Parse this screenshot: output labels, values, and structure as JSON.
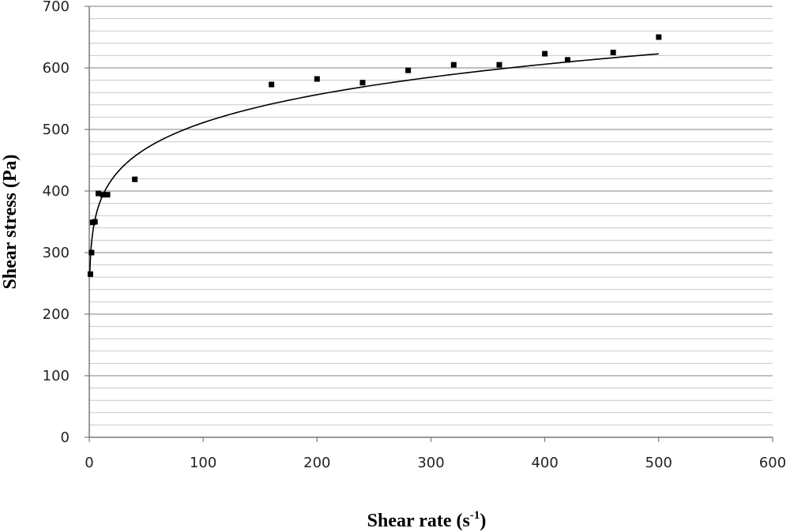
{
  "chart_data": {
    "type": "scatter",
    "xlabel": {
      "base": "Shear rate (s",
      "sup": "-1",
      "tail": ")"
    },
    "ylabel": "Shear stress (Pa)",
    "xlim": [
      0,
      600
    ],
    "ylim": [
      0,
      700
    ],
    "x_ticks": [
      "0",
      "100",
      "200",
      "300",
      "400",
      "500",
      "600"
    ],
    "y_ticks": [
      "0",
      "100",
      "200",
      "300",
      "400",
      "500",
      "600",
      "700"
    ],
    "major_grid_step": 100,
    "minor_grid_step": 20,
    "grid": true,
    "legend": "none",
    "series": [
      {
        "marker": "square",
        "points": [
          {
            "x": 1,
            "y": 265
          },
          {
            "x": 2,
            "y": 300
          },
          {
            "x": 3,
            "y": 349
          },
          {
            "x": 5,
            "y": 350
          },
          {
            "x": 8,
            "y": 396
          },
          {
            "x": 12,
            "y": 394
          },
          {
            "x": 16,
            "y": 394
          },
          {
            "x": 40,
            "y": 419
          },
          {
            "x": 160,
            "y": 573
          },
          {
            "x": 200,
            "y": 582
          },
          {
            "x": 240,
            "y": 576
          },
          {
            "x": 280,
            "y": 596
          },
          {
            "x": 320,
            "y": 605
          },
          {
            "x": 360,
            "y": 605
          },
          {
            "x": 400,
            "y": 623
          },
          {
            "x": 420,
            "y": 613
          },
          {
            "x": 460,
            "y": 625
          },
          {
            "x": 500,
            "y": 650
          }
        ]
      }
    ],
    "trendline": {
      "type": "power",
      "a": 290,
      "b": 0.123,
      "x_range": [
        0.5,
        500
      ]
    },
    "colors": {
      "marker": "#000000",
      "line": "#000000",
      "major_grid": "#9a9a9a",
      "minor_grid": "#c8c8c8"
    }
  }
}
